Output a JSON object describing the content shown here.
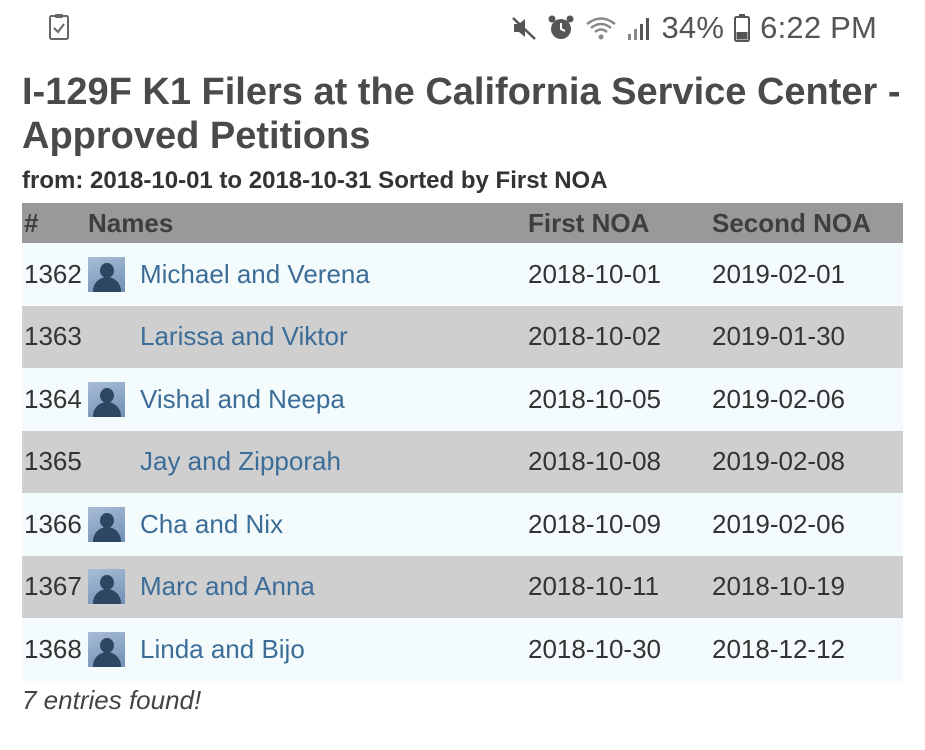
{
  "status_bar": {
    "left_icon": "clipboard-check-icon",
    "icons": [
      "mute-icon",
      "alarm-icon",
      "wifi-icon",
      "signal-icon",
      "battery-icon"
    ],
    "battery_percent": "34%",
    "time": "6:22 PM"
  },
  "page": {
    "title": "I-129F K1 Filers at the California Service Center - Approved Petitions",
    "subtitle": "from: 2018-10-01 to 2018-10-31 Sorted by First NOA"
  },
  "table": {
    "headers": {
      "num": "#",
      "names": "Names",
      "first_noa": "First NOA",
      "second_noa": "Second NOA"
    },
    "rows": [
      {
        "num": "1362",
        "name": "Michael and Verena",
        "first_noa": "2018-10-01",
        "second_noa": "2019-02-01",
        "avatar": true
      },
      {
        "num": "1363",
        "name": "Larissa and Viktor",
        "first_noa": "2018-10-02",
        "second_noa": "2019-01-30",
        "avatar": false
      },
      {
        "num": "1364",
        "name": "Vishal and Neepa",
        "first_noa": "2018-10-05",
        "second_noa": "2019-02-06",
        "avatar": true
      },
      {
        "num": "1365",
        "name": "Jay and Zipporah",
        "first_noa": "2018-10-08",
        "second_noa": "2019-02-08",
        "avatar": false
      },
      {
        "num": "1366",
        "name": "Cha and Nix",
        "first_noa": "2018-10-09",
        "second_noa": "2019-02-06",
        "avatar": true
      },
      {
        "num": "1367",
        "name": "Marc and Anna",
        "first_noa": "2018-10-11",
        "second_noa": "2018-10-19",
        "avatar": true
      },
      {
        "num": "1368",
        "name": "Linda and Bijo",
        "first_noa": "2018-10-30",
        "second_noa": "2018-12-12",
        "avatar": true
      }
    ]
  },
  "footer": {
    "entries_found": "7 entries found!"
  },
  "colors": {
    "header_bg": "#999999",
    "row_odd": "#f4fbfc",
    "row_even": "#cfcfcf",
    "link": "#3c6d98"
  }
}
